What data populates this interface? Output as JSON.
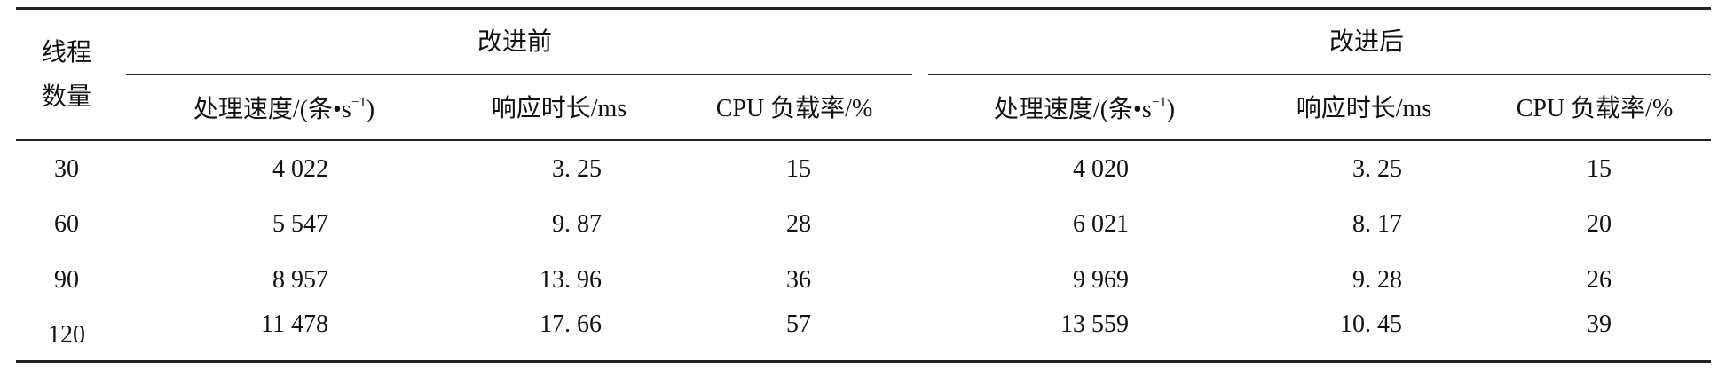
{
  "table": {
    "row_header": "线程数量",
    "row_header_lines": [
      "线程",
      "数量"
    ],
    "groups": [
      "改进前",
      "改进后"
    ],
    "sub_columns": [
      "处理速度/(条•s⁻¹)",
      "响应时长/ms",
      "CPU 负载率/%"
    ],
    "rows": [
      {
        "threads": "30",
        "before": [
          "4 022",
          "3. 25",
          "15"
        ],
        "after": [
          "4 020",
          "3. 25",
          "15"
        ]
      },
      {
        "threads": "60",
        "before": [
          "5 547",
          "9. 87",
          "28"
        ],
        "after": [
          "6 021",
          "8. 17",
          "20"
        ]
      },
      {
        "threads": "90",
        "before": [
          "8 957",
          "13. 96",
          "36"
        ],
        "after": [
          "9 969",
          "9. 28",
          "26"
        ]
      },
      {
        "threads": "120",
        "before": [
          "11 478",
          "17. 66",
          "57"
        ],
        "after": [
          "13 559",
          "10. 45",
          "39"
        ]
      }
    ]
  }
}
